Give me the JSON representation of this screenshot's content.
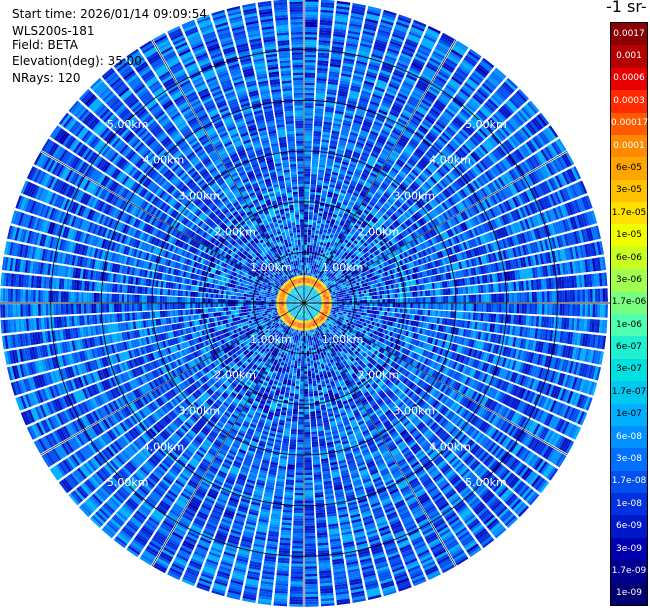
{
  "header": {
    "start_time": "Start time: 2026/01/14 09:09:54",
    "instrument": "WLS200s-181",
    "field": "Field: BETA",
    "elevation": "Elevation(deg): 35.00",
    "nrays": "NRays: 120"
  },
  "colorbar": {
    "unit_label": "-1 sr-",
    "ticks": [
      "0.0017",
      "0.001",
      "0.0006",
      "0.0003",
      "0.00017",
      "0.0001",
      "6e-05",
      "3e-05",
      "1.7e-05",
      "1e-05",
      "6e-06",
      "3e-06",
      "1.7e-06",
      "1e-06",
      "6e-07",
      "3e-07",
      "1.7e-07",
      "1e-07",
      "6e-08",
      "3e-08",
      "1.7e-08",
      "1e-08",
      "6e-09",
      "3e-09",
      "1.7e-09",
      "1e-09"
    ],
    "colors": [
      "#8b0000",
      "#b30000",
      "#e60000",
      "#ff2a00",
      "#ff5a00",
      "#ff8a00",
      "#ffa500",
      "#ffc200",
      "#ffe000",
      "#f0ff00",
      "#c8ff20",
      "#a0ff50",
      "#78ff80",
      "#50ffb0",
      "#20f0d0",
      "#00e0e0",
      "#00c8f0",
      "#00b0ff",
      "#0090ff",
      "#0070ff",
      "#0050f0",
      "#0030e0",
      "#0018c8",
      "#0000b0",
      "#000090",
      "#000070"
    ]
  },
  "chart_data": {
    "type": "heatmap",
    "projection": "polar-ppi",
    "field": "BETA",
    "elevation_deg": 35.0,
    "n_rays": 120,
    "range_rings_km": [
      1.0,
      2.0,
      3.0,
      4.0,
      5.0
    ],
    "range_labels": [
      "1.00km",
      "2.00km",
      "3.00km",
      "4.00km",
      "5.00km"
    ],
    "max_range_km": 6.0,
    "color_scale": "log",
    "value_range": [
      1e-09,
      0.0017
    ],
    "structure": {
      "background_level": 1.7e-08,
      "inner_field_level": 1e-07,
      "aerosol_ring": {
        "range_km": [
          0.35,
          0.55
        ],
        "peak": 0.0003,
        "shoulder": 1e-05
      },
      "near_field_speckle_km": [
        0.55,
        2.3
      ],
      "near_field_level": 3e-08,
      "outer_speckle_level": 1e-07
    }
  }
}
